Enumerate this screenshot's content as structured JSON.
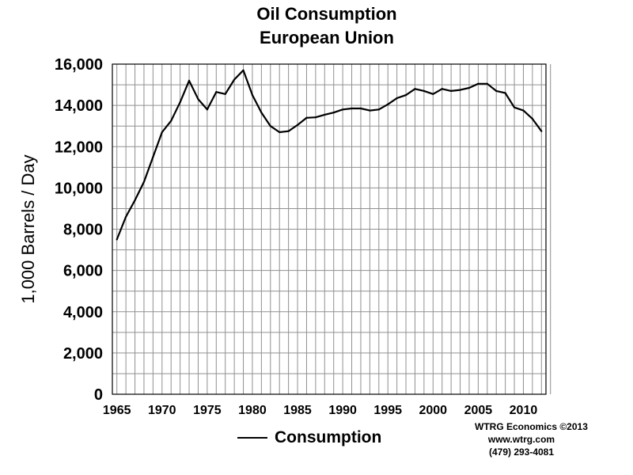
{
  "chart_data": {
    "type": "line",
    "title": "Oil Consumption",
    "subtitle": "European Union",
    "ylabel": "1,000 Barrels / Day",
    "xlabel": "",
    "xlim": [
      1965,
      2012
    ],
    "ylim": [
      0,
      16000
    ],
    "grid": true,
    "legend_position": "bottom-center",
    "x_ticks": [
      1965,
      1970,
      1975,
      1980,
      1985,
      1990,
      1995,
      2000,
      2005,
      2010
    ],
    "x_tick_labels": [
      "1965",
      "1970",
      "1975",
      "1980",
      "1985",
      "1990",
      "1995",
      "2000",
      "2005",
      "2010"
    ],
    "y_ticks": [
      0,
      2000,
      4000,
      6000,
      8000,
      10000,
      12000,
      14000,
      16000
    ],
    "y_tick_labels": [
      "0",
      "2,000",
      "4,000",
      "6,000",
      "8,000",
      "10,000",
      "12,000",
      "14,000",
      "16,000"
    ],
    "x": [
      1965,
      1966,
      1967,
      1968,
      1969,
      1970,
      1971,
      1972,
      1973,
      1974,
      1975,
      1976,
      1977,
      1978,
      1979,
      1980,
      1981,
      1982,
      1983,
      1984,
      1985,
      1986,
      1987,
      1988,
      1989,
      1990,
      1991,
      1992,
      1993,
      1994,
      1995,
      1996,
      1997,
      1998,
      1999,
      2000,
      2001,
      2002,
      2003,
      2004,
      2005,
      2006,
      2007,
      2008,
      2009,
      2010,
      2011,
      2012
    ],
    "series": [
      {
        "name": "Consumption",
        "color": "#000000",
        "values": [
          7500,
          8600,
          9400,
          10300,
          11500,
          12700,
          13250,
          14150,
          15200,
          14300,
          13800,
          14650,
          14550,
          15250,
          15700,
          14500,
          13650,
          13000,
          12700,
          12750,
          13050,
          13400,
          13420,
          13550,
          13650,
          13800,
          13850,
          13850,
          13750,
          13800,
          14050,
          14350,
          14500,
          14800,
          14700,
          14550,
          14800,
          14700,
          14750,
          14850,
          15050,
          15050,
          14700,
          14600,
          13900,
          13750,
          13350,
          12750
        ]
      }
    ]
  },
  "credits": {
    "line1": "WTRG Economics  ©2013",
    "line2": "www.wtrg.com",
    "line3": "(479) 293-4081"
  }
}
